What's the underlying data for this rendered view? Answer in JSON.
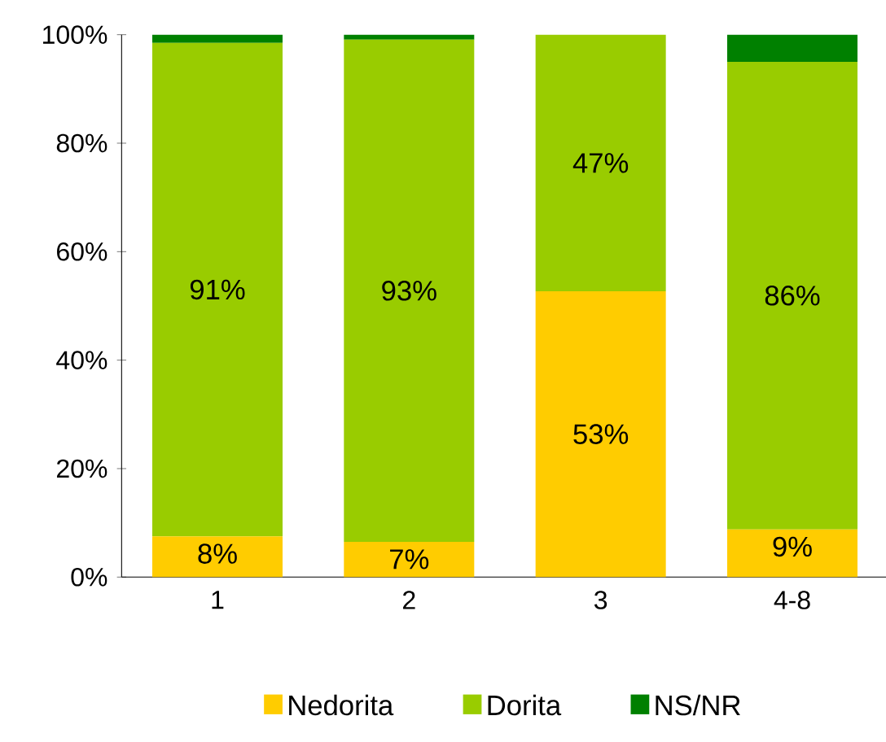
{
  "chart_data": {
    "type": "bar",
    "stacked": true,
    "categories": [
      "1",
      "2",
      "3",
      "4-8"
    ],
    "series": [
      {
        "name": "Nedorita",
        "color": "#ffcc00",
        "values": [
          7.5,
          6.5,
          52.7,
          8.8
        ],
        "value_labels": [
          "8%",
          "7%",
          "53%",
          "9%"
        ]
      },
      {
        "name": "Dorita",
        "color": "#99cc00",
        "values": [
          91,
          92.6,
          47.3,
          86.2
        ],
        "value_labels": [
          "91%",
          "93%",
          "47%",
          "86%"
        ]
      },
      {
        "name": "NS/NR",
        "color": "#008000",
        "values": [
          1.5,
          0.9,
          0,
          5
        ],
        "value_labels": [
          null,
          null,
          null,
          null
        ]
      }
    ],
    "ylim": [
      0,
      100
    ],
    "yticks": [
      {
        "value": 0,
        "label": "0%"
      },
      {
        "value": 20,
        "label": "20%"
      },
      {
        "value": 40,
        "label": "40%"
      },
      {
        "value": 60,
        "label": "60%"
      },
      {
        "value": 80,
        "label": "80%"
      },
      {
        "value": 100,
        "label": "100%"
      }
    ],
    "grid": false,
    "legend": "bottom"
  }
}
